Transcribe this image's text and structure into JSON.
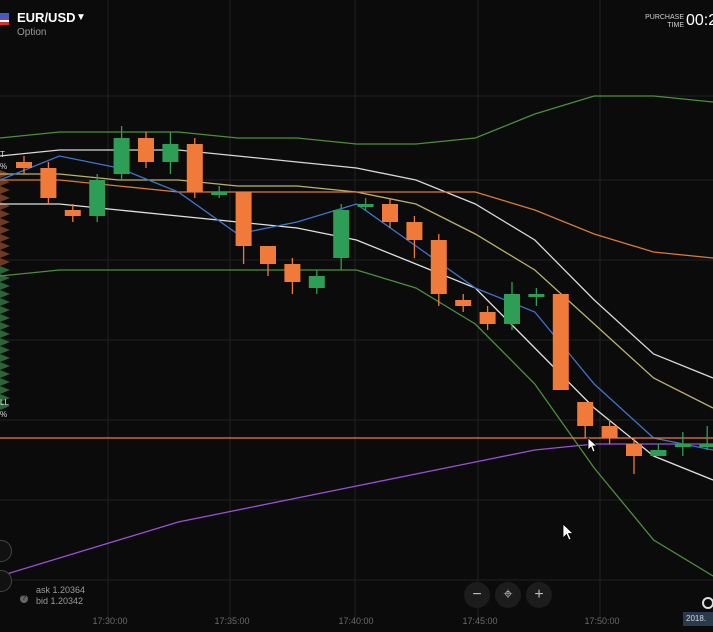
{
  "asset": {
    "name": "EUR/USD",
    "type": "Option"
  },
  "purchase_time": {
    "label_line1": "PURCHASE",
    "label_line2": "TIME",
    "value": "00:2"
  },
  "side_labels": {
    "call": "T",
    "call_pct": "%",
    "put": "LL",
    "put_pct": "%"
  },
  "quotes": {
    "ask": "ask 1.20364",
    "bid": "bid 1.20342"
  },
  "zoom_controls": {
    "zoom_out": "−",
    "center": "⌖",
    "zoom_in": "+"
  },
  "date_badge": "2018.",
  "icons": [
    "flag-us-icon",
    "caret-down-icon",
    "info-icon",
    "gear-icon",
    "cursor-icon"
  ],
  "colors": {
    "up": "#2e9e57",
    "down": "#f07a3a",
    "background": "#0b0b0b"
  },
  "chart_data": {
    "type": "candlestick",
    "x_tick_labels": [
      "17:30:00",
      "17:35:00",
      "17:40:00",
      "17:45:00",
      "17:50:00"
    ],
    "candles": [
      {
        "open": 1.2043,
        "close": 1.2042,
        "high": 1.2044,
        "low": 1.2041
      },
      {
        "open": 1.2042,
        "close": 1.2037,
        "high": 1.2043,
        "low": 1.2036
      },
      {
        "open": 1.2035,
        "close": 1.2034,
        "high": 1.2036,
        "low": 1.2033
      },
      {
        "open": 1.2034,
        "close": 1.204,
        "high": 1.2041,
        "low": 1.2033
      },
      {
        "open": 1.2041,
        "close": 1.2047,
        "high": 1.2049,
        "low": 1.204
      },
      {
        "open": 1.2047,
        "close": 1.2043,
        "high": 1.2048,
        "low": 1.2042
      },
      {
        "open": 1.2043,
        "close": 1.2046,
        "high": 1.2048,
        "low": 1.2041
      },
      {
        "open": 1.2046,
        "close": 1.2038,
        "high": 1.2047,
        "low": 1.2037
      },
      {
        "open": 1.2038,
        "close": 1.2038,
        "high": 1.2039,
        "low": 1.2037
      },
      {
        "open": 1.2038,
        "close": 1.2029,
        "high": 1.2038,
        "low": 1.2026
      },
      {
        "open": 1.2029,
        "close": 1.2026,
        "high": 1.2029,
        "low": 1.2024
      },
      {
        "open": 1.2026,
        "close": 1.2023,
        "high": 1.2027,
        "low": 1.2021
      },
      {
        "open": 1.2022,
        "close": 1.2024,
        "high": 1.2025,
        "low": 1.2021
      },
      {
        "open": 1.2027,
        "close": 1.2035,
        "high": 1.2036,
        "low": 1.2025
      },
      {
        "open": 1.2036,
        "close": 1.2036,
        "high": 1.2037,
        "low": 1.2035
      },
      {
        "open": 1.2036,
        "close": 1.2033,
        "high": 1.2037,
        "low": 1.2032
      },
      {
        "open": 1.2033,
        "close": 1.203,
        "high": 1.2034,
        "low": 1.2027
      },
      {
        "open": 1.203,
        "close": 1.2021,
        "high": 1.2031,
        "low": 1.2019
      },
      {
        "open": 1.202,
        "close": 1.2019,
        "high": 1.2021,
        "low": 1.2018
      },
      {
        "open": 1.2018,
        "close": 1.2016,
        "high": 1.2019,
        "low": 1.2015
      },
      {
        "open": 1.2016,
        "close": 1.2021,
        "high": 1.2023,
        "low": 1.2015
      },
      {
        "open": 1.2021,
        "close": 1.2021,
        "high": 1.2022,
        "low": 1.2019
      },
      {
        "open": 1.2021,
        "close": 1.2005,
        "high": 1.2021,
        "low": 1.2005
      },
      {
        "open": 1.2003,
        "close": 1.1999,
        "high": 1.2003,
        "low": 1.1997
      },
      {
        "open": 1.1999,
        "close": 1.1997,
        "high": 1.2,
        "low": 1.1996
      },
      {
        "open": 1.1996,
        "close": 1.1994,
        "high": 1.1997,
        "low": 1.1991
      },
      {
        "open": 1.1994,
        "close": 1.1995,
        "high": 1.1996,
        "low": 1.1994
      },
      {
        "open": 1.1996,
        "close": 1.1996,
        "high": 1.1998,
        "low": 1.1994
      },
      {
        "open": 1.1996,
        "close": 1.1996,
        "high": 1.1999,
        "low": 1.1995
      }
    ],
    "horizontal_line": {
      "value": 1.1997,
      "color": "#f07a3a"
    },
    "indicator_lines": [
      {
        "color": "#4c8f3a",
        "values": [
          1.2047,
          1.2048,
          1.2048,
          1.2048,
          1.2047,
          1.2047,
          1.2046,
          1.2046,
          1.2047,
          1.2051,
          1.2054,
          1.2054,
          1.2053
        ]
      },
      {
        "color": "#d8d8d8",
        "values": [
          1.2044,
          1.2045,
          1.2045,
          1.2045,
          1.2044,
          1.2043,
          1.2042,
          1.204,
          1.2036,
          1.203,
          1.202,
          1.2011,
          1.2007
        ]
      },
      {
        "color": "#b9b36a",
        "values": [
          1.2041,
          1.2041,
          1.204,
          1.204,
          1.2039,
          1.2039,
          1.2038,
          1.2036,
          1.2031,
          1.2025,
          1.2016,
          1.2007,
          1.2002
        ]
      },
      {
        "color": "#d87a3a",
        "values": [
          1.204,
          1.204,
          1.2039,
          1.2038,
          1.2038,
          1.2038,
          1.2038,
          1.2038,
          1.2038,
          1.2035,
          1.2031,
          1.2028,
          1.2027
        ]
      },
      {
        "color": "#e0e0e0",
        "values": [
          1.2036,
          1.2036,
          1.2035,
          1.2034,
          1.2033,
          1.2032,
          1.203,
          1.2026,
          1.2022,
          1.2012,
          1.2002,
          1.1994,
          1.199
        ]
      },
      {
        "color": "#4c8f3a",
        "values": [
          1.2024,
          1.2025,
          1.2025,
          1.2025,
          1.2025,
          1.2025,
          1.2025,
          1.2022,
          1.2016,
          1.2006,
          1.1992,
          1.198,
          1.1974
        ]
      },
      {
        "color": "#9b4fd6",
        "values": [
          1.1974,
          1.1977,
          1.198,
          1.1983,
          1.1985,
          1.1987,
          1.1989,
          1.1991,
          1.1993,
          1.1995,
          1.1996,
          1.1996,
          1.1996
        ]
      },
      {
        "color": "#3e74c9",
        "values": [
          1.204,
          1.2044,
          1.2042,
          1.2038,
          1.2031,
          1.2033,
          1.2036,
          1.2029,
          1.2022,
          1.2018,
          1.2006,
          1.1997,
          1.1995
        ]
      }
    ]
  }
}
